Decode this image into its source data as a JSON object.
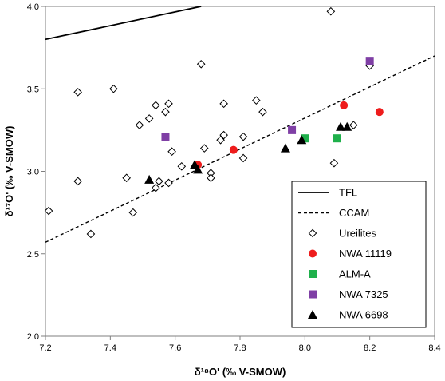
{
  "chart_data": {
    "type": "scatter",
    "xlabel": "δ¹⁸O' (‰ V-SMOW)",
    "ylabel": "δ¹⁷O' (‰ V-SMOW)",
    "xlim": [
      7.2,
      8.4
    ],
    "ylim": [
      2.0,
      4.0
    ],
    "x_ticks": [
      "7.2",
      "7.4",
      "7.6",
      "7.8",
      "8.0",
      "8.2",
      "8.4"
    ],
    "y_ticks": [
      "2.0",
      "2.5",
      "3.0",
      "3.5",
      "4.0"
    ],
    "grid": false,
    "legend_position": "bottom-right",
    "lines": [
      {
        "name": "TFL",
        "style": "solid",
        "color": "#000000",
        "x": [
          7.2,
          7.68
        ],
        "y": [
          3.8,
          4.0
        ]
      },
      {
        "name": "CCAM",
        "style": "dashed",
        "color": "#000000",
        "x": [
          7.2,
          8.4
        ],
        "y": [
          2.57,
          3.7
        ]
      }
    ],
    "series": [
      {
        "name": "Ureilites",
        "marker": "diamond",
        "color": "#000000",
        "points": [
          [
            7.21,
            2.76
          ],
          [
            7.3,
            3.48
          ],
          [
            7.3,
            2.94
          ],
          [
            7.34,
            2.62
          ],
          [
            7.41,
            3.5
          ],
          [
            7.45,
            2.96
          ],
          [
            7.47,
            2.75
          ],
          [
            7.49,
            3.28
          ],
          [
            7.52,
            3.32
          ],
          [
            7.54,
            3.4
          ],
          [
            7.54,
            2.9
          ],
          [
            7.55,
            2.94
          ],
          [
            7.57,
            3.36
          ],
          [
            7.58,
            3.41
          ],
          [
            7.58,
            2.93
          ],
          [
            7.59,
            3.12
          ],
          [
            7.62,
            3.03
          ],
          [
            7.68,
            3.65
          ],
          [
            7.69,
            3.14
          ],
          [
            7.71,
            2.99
          ],
          [
            7.71,
            2.96
          ],
          [
            7.74,
            3.19
          ],
          [
            7.75,
            3.22
          ],
          [
            7.75,
            3.41
          ],
          [
            7.81,
            3.21
          ],
          [
            7.81,
            3.08
          ],
          [
            7.85,
            3.43
          ],
          [
            7.87,
            3.36
          ],
          [
            8.08,
            3.97
          ],
          [
            8.09,
            3.05
          ],
          [
            8.15,
            3.28
          ],
          [
            8.2,
            3.64
          ]
        ]
      },
      {
        "name": "NWA 11119",
        "marker": "circle",
        "color": "#ee1c1c",
        "points": [
          [
            7.67,
            3.04
          ],
          [
            7.78,
            3.13
          ],
          [
            8.12,
            3.4
          ],
          [
            8.23,
            3.36
          ]
        ]
      },
      {
        "name": "ALM-A",
        "marker": "square",
        "color": "#1fb04b",
        "points": [
          [
            8.0,
            3.2
          ],
          [
            8.1,
            3.2
          ]
        ]
      },
      {
        "name": "NWA 7325",
        "marker": "square",
        "color": "#7f3fa5",
        "points": [
          [
            7.57,
            3.21
          ],
          [
            7.96,
            3.25
          ],
          [
            8.2,
            3.67
          ]
        ]
      },
      {
        "name": "NWA 6698",
        "marker": "triangle",
        "color": "#000000",
        "points": [
          [
            7.52,
            2.95
          ],
          [
            7.66,
            3.04
          ],
          [
            7.67,
            3.01
          ],
          [
            7.94,
            3.14
          ],
          [
            7.99,
            3.19
          ],
          [
            8.11,
            3.27
          ],
          [
            8.13,
            3.27
          ]
        ]
      }
    ],
    "legend": [
      {
        "label": "TFL",
        "kind": "line-solid"
      },
      {
        "label": "CCAM",
        "kind": "line-dashed"
      },
      {
        "label": "Ureilites",
        "kind": "diamond",
        "color": "#000000"
      },
      {
        "label": "NWA 11119",
        "kind": "circle",
        "color": "#ee1c1c"
      },
      {
        "label": "ALM-A",
        "kind": "square",
        "color": "#1fb04b"
      },
      {
        "label": "NWA 7325",
        "kind": "square",
        "color": "#7f3fa5"
      },
      {
        "label": "NWA 6698",
        "kind": "triangle",
        "color": "#000000"
      }
    ]
  }
}
